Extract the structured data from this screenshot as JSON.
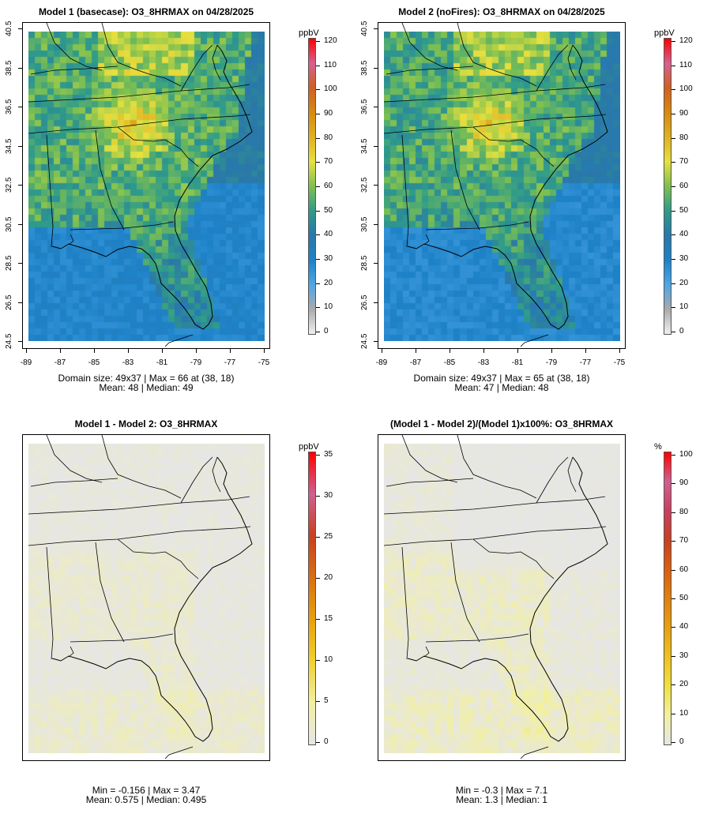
{
  "panels": [
    {
      "id": "p1",
      "title": "Model 1 (basecase): O3_8HRMAX on 04/28/2025",
      "unit": "ppbV",
      "show_axes": true,
      "stats_line1": "Domain size: 49x37 | Max = 66 at (38, 18)",
      "stats_line2": "Mean: 48 |  Median: 49",
      "colorbar_labels": [
        "0",
        "10",
        "20",
        "30",
        "40",
        "50",
        "60",
        "70",
        "80",
        "90",
        "100",
        "110",
        "120"
      ],
      "colorbar_colors": [
        "#f0f0f0",
        "#aaaaaa",
        "#4da6e6",
        "#1e82c8",
        "#2a78a8",
        "#2f9b8a",
        "#7fc050",
        "#e6e040",
        "#e0b020",
        "#d88a10",
        "#d06020",
        "#d66090",
        "#ff0000"
      ],
      "field": "o3"
    },
    {
      "id": "p2",
      "title": "Model 2 (noFires): O3_8HRMAX on 04/28/2025",
      "unit": "ppbV",
      "show_axes": true,
      "stats_line1": "Domain size: 49x37 | Max = 65 at (38, 18)",
      "stats_line2": "Mean: 47 |  Median: 48",
      "colorbar_labels": [
        "0",
        "10",
        "20",
        "30",
        "40",
        "50",
        "60",
        "70",
        "80",
        "90",
        "100",
        "110",
        "120"
      ],
      "colorbar_colors": [
        "#f0f0f0",
        "#aaaaaa",
        "#4da6e6",
        "#1e82c8",
        "#2a78a8",
        "#2f9b8a",
        "#7fc050",
        "#e6e040",
        "#e0b020",
        "#d88a10",
        "#d06020",
        "#d66090",
        "#ff0000"
      ],
      "field": "o3b"
    },
    {
      "id": "p3",
      "title": "Model 1 - Model 2: O3_8HRMAX",
      "unit": "ppbV",
      "show_axes": false,
      "stats_line1": "Min = -0.156 | Max = 3.47",
      "stats_line2": "Mean: 0.575 |  Median: 0.495",
      "colorbar_labels": [
        "0",
        "5",
        "10",
        "15",
        "20",
        "25",
        "30",
        "35"
      ],
      "colorbar_colors": [
        "#e6e6e6",
        "#f2f0a0",
        "#f0d030",
        "#e8a010",
        "#d87010",
        "#c84020",
        "#d06090",
        "#ff0000"
      ],
      "field": "diff"
    },
    {
      "id": "p4",
      "title": "(Model 1 - Model 2)/(Model 1)x100%: O3_8HRMAX",
      "unit": "%",
      "show_axes": false,
      "stats_line1": "Min = -0.3 | Max = 7.1",
      "stats_line2": "Mean: 1.3 |  Median: 1",
      "colorbar_labels": [
        "0",
        "10",
        "20",
        "30",
        "40",
        "50",
        "60",
        "70",
        "80",
        "90",
        "100"
      ],
      "colorbar_colors": [
        "#e6e6e6",
        "#f2f0a0",
        "#f0e040",
        "#f0c020",
        "#e8a010",
        "#e08010",
        "#d86010",
        "#c84020",
        "#c84060",
        "#d06090",
        "#ff0000"
      ],
      "field": "pct"
    }
  ],
  "axes": {
    "y_labels": [
      "24.5",
      "26.5",
      "28.5",
      "30.5",
      "32.5",
      "34.5",
      "36.5",
      "38.5",
      "40.5"
    ],
    "x_labels": [
      "-89",
      "-87",
      "-85",
      "-83",
      "-81",
      "-79",
      "-77",
      "-75"
    ]
  }
}
